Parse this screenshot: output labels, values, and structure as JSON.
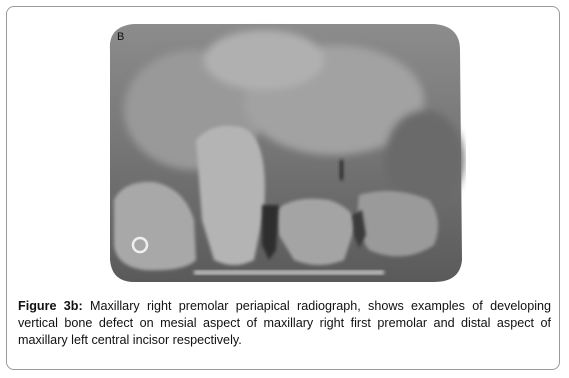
{
  "figure": {
    "panel_label": "B",
    "label": "Figure 3b:",
    "caption": "Maxillary right premolar periapical radiograph, shows examples of developing vertical bone defect on mesial aspect of maxillary right first premolar and distal aspect of maxillary left central incisor respectively."
  }
}
